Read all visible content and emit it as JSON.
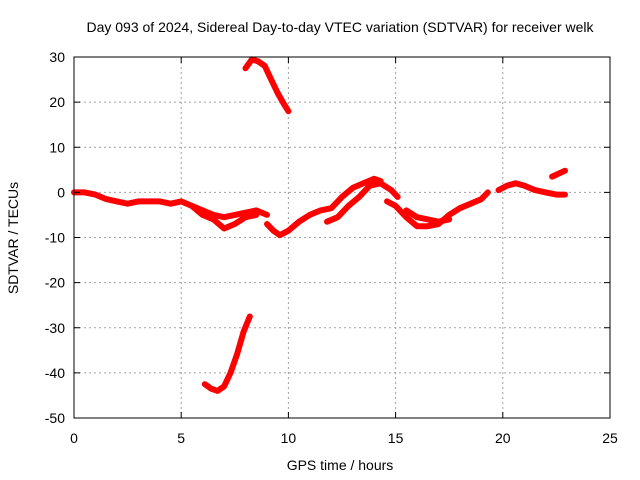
{
  "chart_data": {
    "type": "line",
    "title": "Day 093 of 2024, Sidereal Day-to-day VTEC variation (SDTVAR) for receiver welk",
    "xlabel": "GPS time / hours",
    "ylabel": "SDTVAR / TECUs",
    "xlim": [
      0,
      25
    ],
    "ylim": [
      -50,
      30
    ],
    "xticks": [
      0,
      5,
      10,
      15,
      20,
      25
    ],
    "yticks": [
      -50,
      -40,
      -30,
      -20,
      -10,
      0,
      10,
      20,
      30
    ],
    "grid": true,
    "series_color": "#ff0000",
    "series": [
      {
        "name": "main-1",
        "x": [
          0,
          0.5,
          1,
          1.5,
          2,
          2.5,
          3,
          3.5,
          4,
          4.5,
          5,
          5.5,
          6,
          6.5,
          7,
          7.5,
          8,
          8.5,
          9
        ],
        "y": [
          0,
          0,
          -0.5,
          -1.5,
          -2,
          -2.5,
          -2,
          -2,
          -2,
          -2.5,
          -2,
          -3,
          -4,
          -5,
          -5.5,
          -5,
          -4.5,
          -4,
          -5
        ]
      },
      {
        "name": "main-1b",
        "x": [
          5.5,
          6,
          6.5,
          7,
          7.5,
          8,
          8.5
        ],
        "y": [
          -3,
          -5,
          -6,
          -8,
          -7,
          -5.5,
          -5
        ]
      },
      {
        "name": "main-2",
        "x": [
          9,
          9.3,
          9.6,
          10,
          10.5,
          11,
          11.5,
          12,
          12.5,
          13,
          13.5,
          14,
          14.3
        ],
        "y": [
          -7,
          -8.5,
          -9.5,
          -8.5,
          -6.5,
          -5,
          -4,
          -3.5,
          -1,
          1,
          2,
          3,
          2.5
        ]
      },
      {
        "name": "main-3",
        "x": [
          11.8,
          12.3,
          12.8,
          13.3,
          13.8,
          14.3,
          14.8,
          15.1
        ],
        "y": [
          -6.5,
          -5.5,
          -3,
          -1,
          1.5,
          2,
          0.5,
          -1
        ]
      },
      {
        "name": "main-4",
        "x": [
          14.6,
          15,
          15.5,
          16,
          16.5,
          17,
          17.5,
          18,
          18.5,
          19,
          19.3
        ],
        "y": [
          -2,
          -3,
          -5.5,
          -7.5,
          -7.5,
          -7,
          -5,
          -3.5,
          -2.5,
          -1.5,
          0
        ]
      },
      {
        "name": "main-4b",
        "x": [
          15.5,
          16,
          16.5,
          17,
          17.5
        ],
        "y": [
          -4,
          -5.5,
          -6,
          -6.5,
          -6
        ]
      },
      {
        "name": "main-5",
        "x": [
          19.8,
          20.2,
          20.6,
          21,
          21.5,
          22,
          22.5,
          22.9
        ],
        "y": [
          0.5,
          1.5,
          2,
          1.5,
          0.5,
          0,
          -0.5,
          -0.5
        ]
      },
      {
        "name": "short-segment",
        "x": [
          22.3,
          22.9
        ],
        "y": [
          3.5,
          4.8
        ]
      },
      {
        "name": "upper-arc",
        "x": [
          8,
          8.3,
          8.6,
          8.9,
          9.2,
          9.5,
          9.8,
          10
        ],
        "y": [
          27.5,
          29.5,
          29,
          28,
          25,
          22,
          19.5,
          18
        ]
      },
      {
        "name": "lower-arc",
        "x": [
          6.1,
          6.4,
          6.7,
          7,
          7.3,
          7.6,
          7.9,
          8.2
        ],
        "y": [
          -42.5,
          -43.5,
          -44,
          -43,
          -40,
          -36,
          -31,
          -27.5
        ]
      }
    ]
  }
}
